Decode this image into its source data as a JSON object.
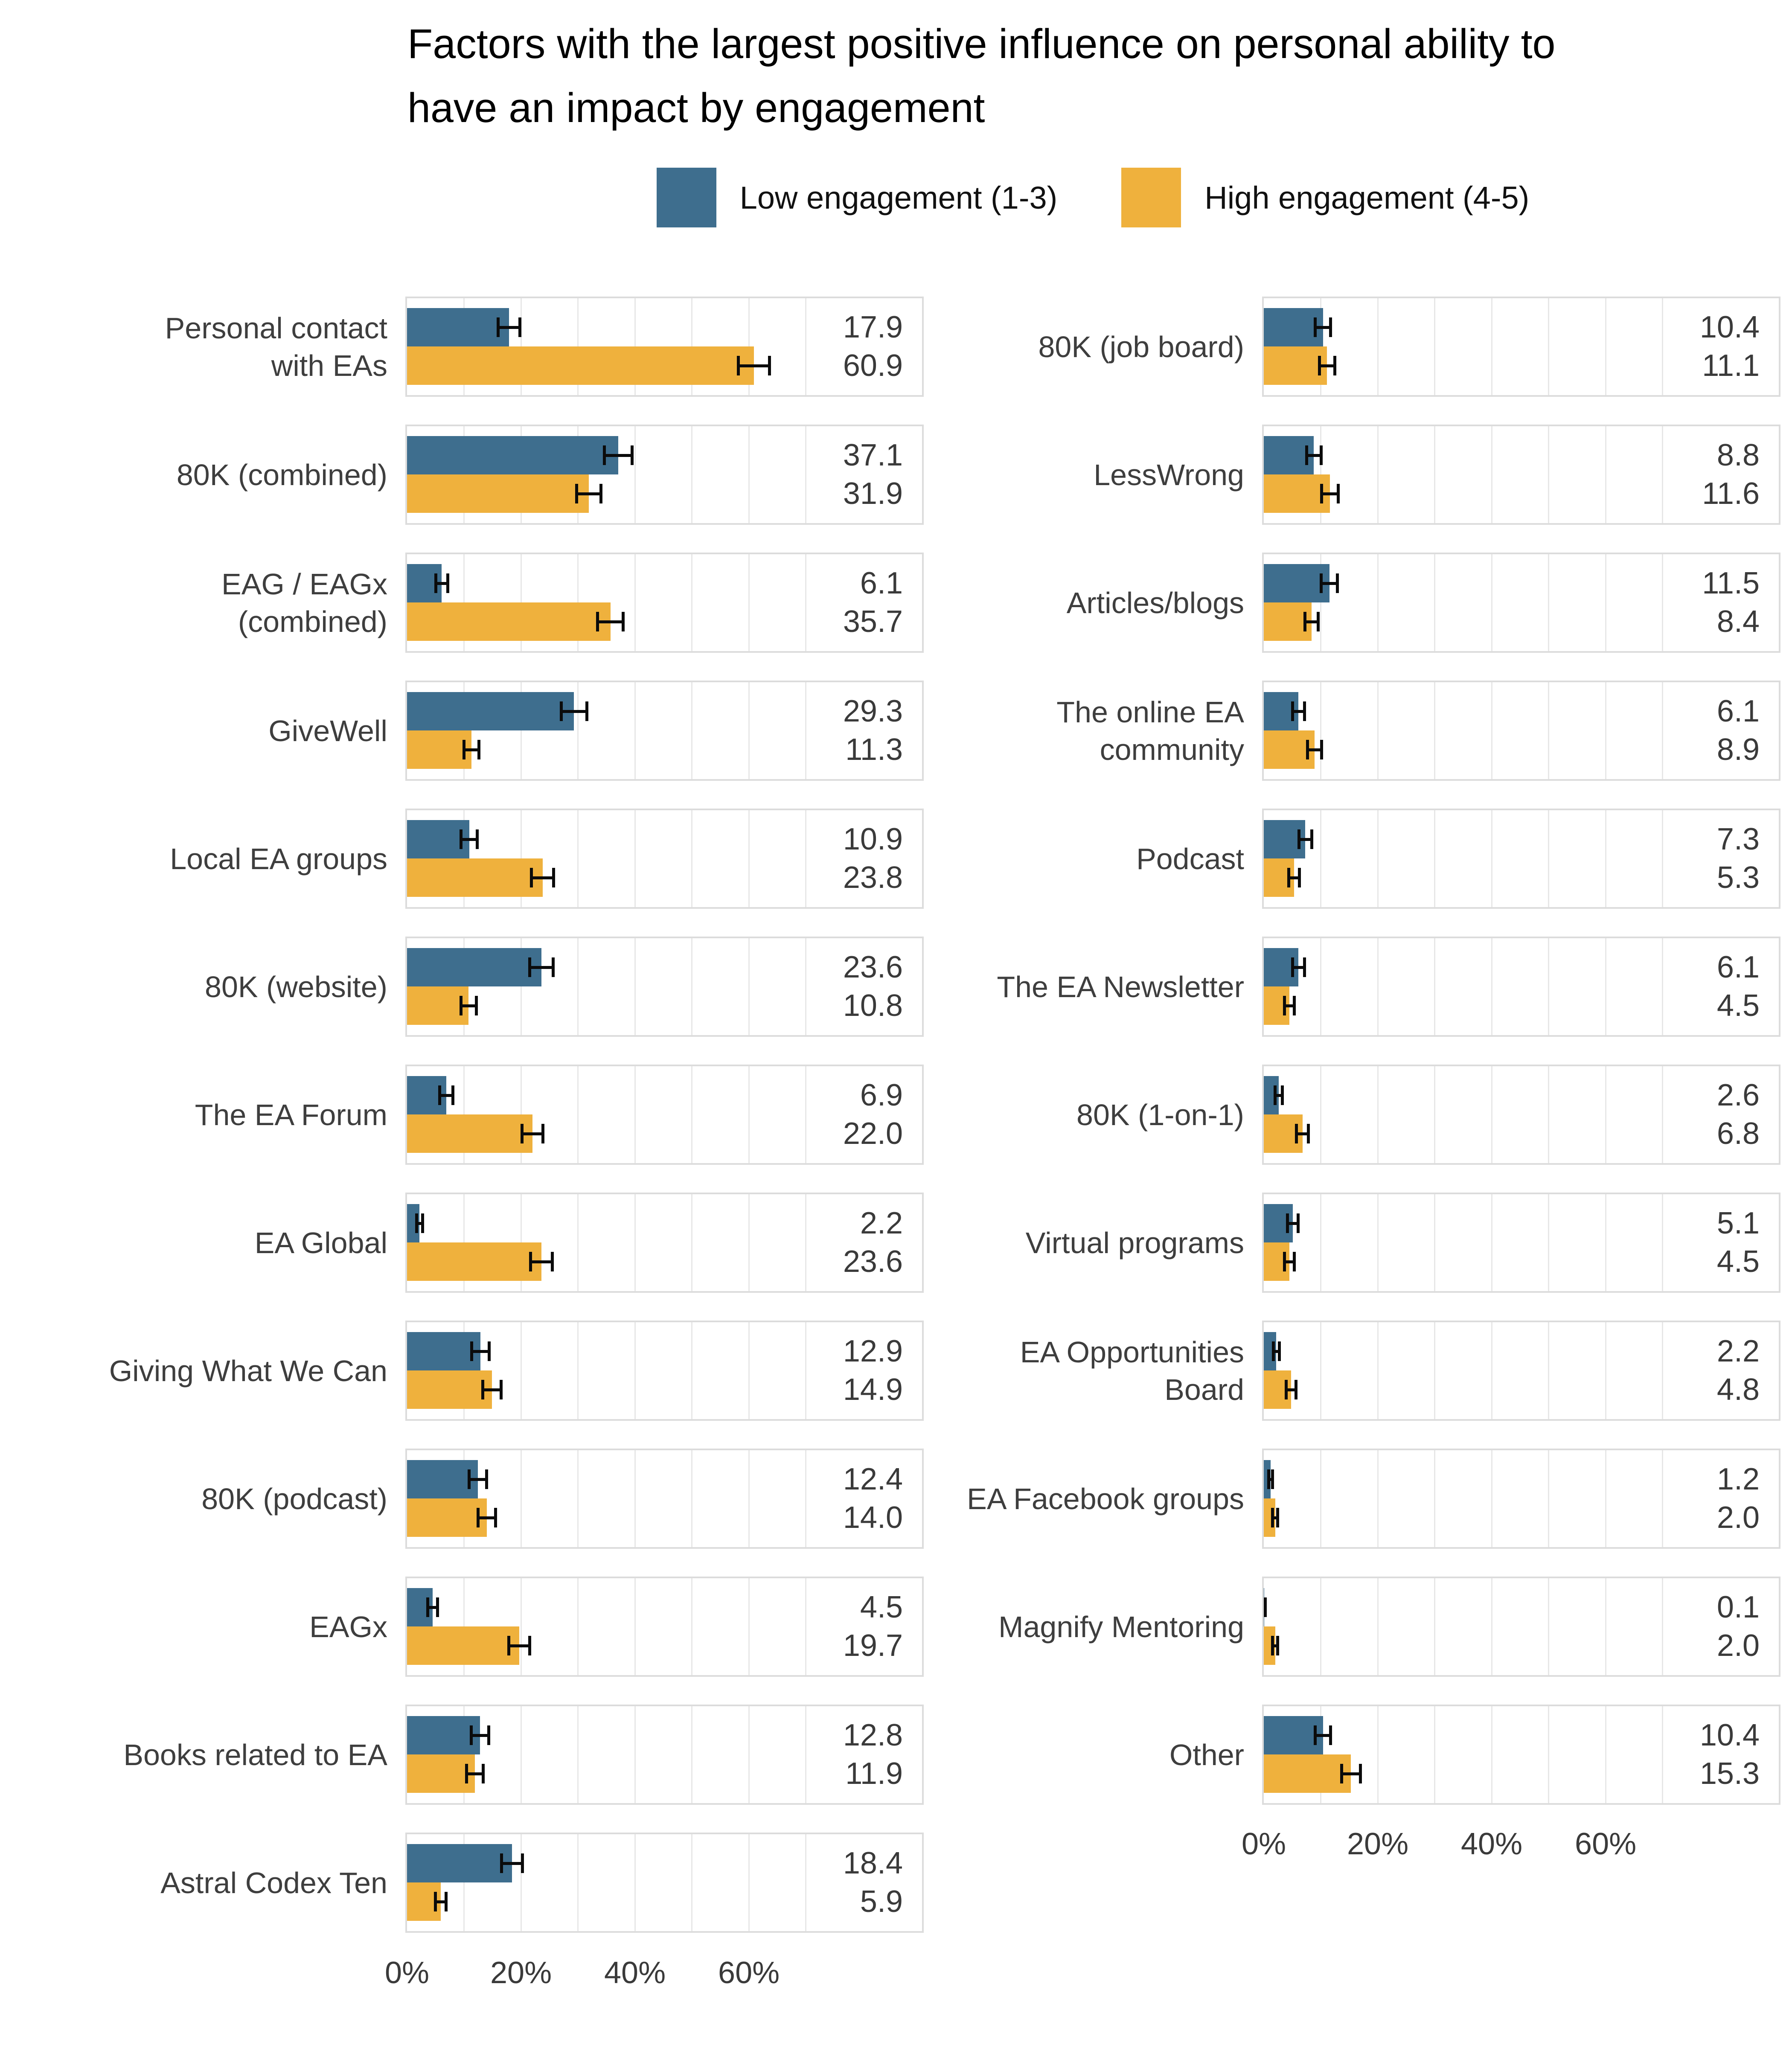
{
  "title": "Factors with the largest positive influence on personal ability to have an impact by engagement",
  "title_lines": [
    "Factors with the largest positive influence on personal ability to",
    "have an impact by engagement"
  ],
  "legend": {
    "items": [
      {
        "label": "Low engagement (1-3)",
        "color": "#3e6e8e",
        "series": "low"
      },
      {
        "label": "High engagement (4-5)",
        "color": "#efb13d",
        "series": "high"
      }
    ]
  },
  "colors": {
    "low": "#3e6e8e",
    "high": "#efb13d",
    "grid": "#e7e7e7",
    "panel_border": "#dcdcdc",
    "text": "#3e3e3e",
    "title": "#000000",
    "error_bar": "#0b0b0b",
    "background": "#ffffff"
  },
  "chart_data": {
    "type": "bar",
    "orientation": "horizontal",
    "title": "Factors with the largest positive influence on personal ability to have an impact by engagement",
    "series": [
      "Low engagement (1-3)",
      "High engagement (4-5)"
    ],
    "unit": "percent",
    "error_bars": true,
    "grid": "vertical, every 10 percent",
    "legend_position": "top-center",
    "x_axis": {
      "ticks": [
        {
          "label": "0%",
          "value": 0
        },
        {
          "label": "20%",
          "value": 20
        },
        {
          "label": "40%",
          "value": 40
        },
        {
          "label": "60%",
          "value": 60
        }
      ],
      "max": 90.4,
      "gridline_values": [
        10,
        20,
        30,
        40,
        50,
        60,
        70
      ]
    },
    "columns": [
      {
        "rows": [
          {
            "category": "Personal contact with EAs",
            "label_lines": [
              "Personal contact",
              "with EAs"
            ],
            "low": 17.9,
            "low_label": "17.9",
            "low_err": 2.2,
            "high": 60.9,
            "high_label": "60.9",
            "high_err": 3.0
          },
          {
            "category": "80K (combined)",
            "label_lines": [
              "80K (combined)"
            ],
            "low": 37.1,
            "low_label": "37.1",
            "low_err": 2.7,
            "high": 31.9,
            "high_label": "31.9",
            "high_err": 2.4
          },
          {
            "category": "EAG / EAGx (combined)",
            "label_lines": [
              "EAG / EAGx",
              "(combined)"
            ],
            "low": 6.1,
            "low_label": "6.1",
            "low_err": 1.3,
            "high": 35.7,
            "high_label": "35.7",
            "high_err": 2.5
          },
          {
            "category": "GiveWell",
            "label_lines": [
              "GiveWell"
            ],
            "low": 29.3,
            "low_label": "29.3",
            "low_err": 2.5,
            "high": 11.3,
            "high_label": "11.3",
            "high_err": 1.6
          },
          {
            "category": "Local EA groups",
            "label_lines": [
              "Local EA groups"
            ],
            "low": 10.9,
            "low_label": "10.9",
            "low_err": 1.7,
            "high": 23.8,
            "high_label": "23.8",
            "high_err": 2.2
          },
          {
            "category": "80K (website)",
            "label_lines": [
              "80K (website)"
            ],
            "low": 23.6,
            "low_label": "23.6",
            "low_err": 2.3,
            "high": 10.8,
            "high_label": "10.8",
            "high_err": 1.6
          },
          {
            "category": "The EA Forum",
            "label_lines": [
              "The EA Forum"
            ],
            "low": 6.9,
            "low_label": "6.9",
            "low_err": 1.4,
            "high": 22.0,
            "high_label": "22.0",
            "high_err": 2.1
          },
          {
            "category": "EA Global",
            "label_lines": [
              "EA Global"
            ],
            "low": 2.2,
            "low_label": "2.2",
            "low_err": 0.8,
            "high": 23.6,
            "high_label": "23.6",
            "high_err": 2.2
          },
          {
            "category": "Giving What We Can",
            "label_lines": [
              "Giving What We Can"
            ],
            "low": 12.9,
            "low_label": "12.9",
            "low_err": 1.8,
            "high": 14.9,
            "high_label": "14.9",
            "high_err": 1.9
          },
          {
            "category": "80K (podcast)",
            "label_lines": [
              "80K (podcast)"
            ],
            "low": 12.4,
            "low_label": "12.4",
            "low_err": 1.8,
            "high": 14.0,
            "high_label": "14.0",
            "high_err": 1.8
          },
          {
            "category": "EAGx",
            "label_lines": [
              "EAGx"
            ],
            "low": 4.5,
            "low_label": "4.5",
            "low_err": 1.1,
            "high": 19.7,
            "high_label": "19.7",
            "high_err": 2.1
          },
          {
            "category": "Books related to EA",
            "label_lines": [
              "Books related to EA"
            ],
            "low": 12.8,
            "low_label": "12.8",
            "low_err": 1.8,
            "high": 11.9,
            "high_label": "11.9",
            "high_err": 1.7
          },
          {
            "category": "Astral Codex Ten",
            "label_lines": [
              "Astral Codex Ten"
            ],
            "low": 18.4,
            "low_label": "18.4",
            "low_err": 2.1,
            "high": 5.9,
            "high_label": "5.9",
            "high_err": 1.2
          }
        ]
      },
      {
        "rows": [
          {
            "category": "80K (job board)",
            "label_lines": [
              "80K (job board)"
            ],
            "low": 10.4,
            "low_label": "10.4",
            "low_err": 1.6,
            "high": 11.1,
            "high_label": "11.1",
            "high_err": 1.6
          },
          {
            "category": "LessWrong",
            "label_lines": [
              "LessWrong"
            ],
            "low": 8.8,
            "low_label": "8.8",
            "low_err": 1.5,
            "high": 11.6,
            "high_label": "11.6",
            "high_err": 1.7
          },
          {
            "category": "Articles/blogs",
            "label_lines": [
              "Articles/blogs"
            ],
            "low": 11.5,
            "low_label": "11.5",
            "low_err": 1.7,
            "high": 8.4,
            "high_label": "8.4",
            "high_err": 1.4
          },
          {
            "category": "The online EA community",
            "label_lines": [
              "The online EA",
              "community"
            ],
            "low": 6.1,
            "low_label": "6.1",
            "low_err": 1.3,
            "high": 8.9,
            "high_label": "8.9",
            "high_err": 1.5
          },
          {
            "category": "Podcast",
            "label_lines": [
              "Podcast"
            ],
            "low": 7.3,
            "low_label": "7.3",
            "low_err": 1.4,
            "high": 5.3,
            "high_label": "5.3",
            "high_err": 1.2
          },
          {
            "category": "The EA Newsletter",
            "label_lines": [
              "The EA Newsletter"
            ],
            "low": 6.1,
            "low_label": "6.1",
            "low_err": 1.3,
            "high": 4.5,
            "high_label": "4.5",
            "high_err": 1.1
          },
          {
            "category": "80K (1-on-1)",
            "label_lines": [
              "80K (1-on-1)"
            ],
            "low": 2.6,
            "low_label": "2.6",
            "low_err": 0.9,
            "high": 6.8,
            "high_label": "6.8",
            "high_err": 1.3
          },
          {
            "category": "Virtual programs",
            "label_lines": [
              "Virtual programs"
            ],
            "low": 5.1,
            "low_label": "5.1",
            "low_err": 1.2,
            "high": 4.5,
            "high_label": "4.5",
            "high_err": 1.1
          },
          {
            "category": "EA Opportunities Board",
            "label_lines": [
              "EA Opportunities",
              "Board"
            ],
            "low": 2.2,
            "low_label": "2.2",
            "low_err": 0.8,
            "high": 4.8,
            "high_label": "4.8",
            "high_err": 1.1
          },
          {
            "category": "EA Facebook groups",
            "label_lines": [
              "EA Facebook groups"
            ],
            "low": 1.2,
            "low_label": "1.2",
            "low_err": 0.6,
            "high": 2.0,
            "high_label": "2.0",
            "high_err": 0.7
          },
          {
            "category": "Magnify Mentoring",
            "label_lines": [
              "Magnify Mentoring"
            ],
            "low": 0.1,
            "low_label": "0.1",
            "low_err": 0.3,
            "high": 2.0,
            "high_label": "2.0",
            "high_err": 0.7
          },
          {
            "category": "Other",
            "label_lines": [
              "Other"
            ],
            "low": 10.4,
            "low_label": "10.4",
            "low_err": 1.6,
            "high": 15.3,
            "high_label": "15.3",
            "high_err": 1.9
          }
        ]
      }
    ]
  }
}
